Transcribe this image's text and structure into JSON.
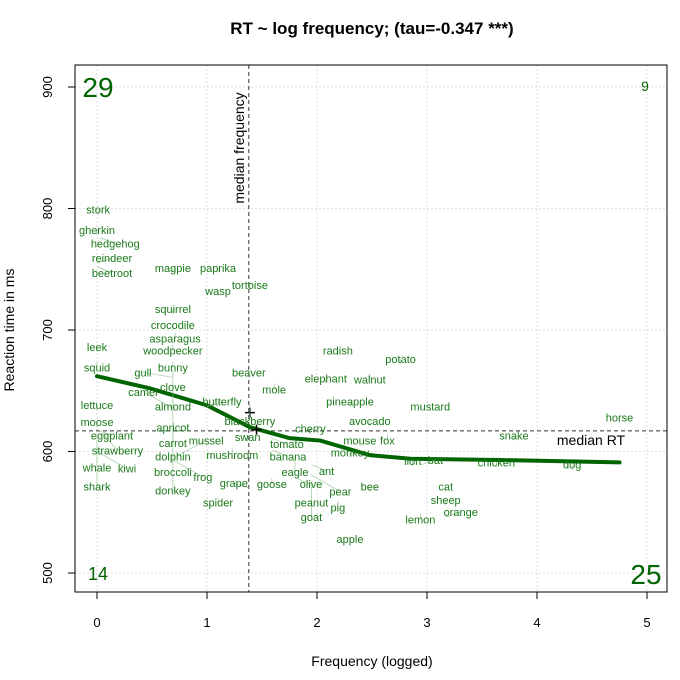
{
  "chart_data": {
    "type": "scatter",
    "title": "RT ~ log frequency; (tau=-0.347 ***)",
    "xlabel": "Frequency (logged)",
    "ylabel": "Reaction time in ms",
    "xlim": [
      -0.2,
      5.2
    ],
    "ylim": [
      482,
      920
    ],
    "xticks": [
      "0",
      "1",
      "2",
      "3",
      "4",
      "5"
    ],
    "yticks": [
      "500",
      "600",
      "700",
      "800",
      "900"
    ],
    "grid": true,
    "point_color": "#006400",
    "median_frequency": {
      "value": 1.38,
      "label": "median frequency"
    },
    "median_rt": {
      "value": 617,
      "label": "median RT"
    },
    "quadrant_counts": {
      "top_left": "29",
      "top_right": "9",
      "bottom_left": "14",
      "bottom_right": "25"
    },
    "points": [
      {
        "label": "stork",
        "x": 0.01,
        "y": 795
      },
      {
        "label": "gherkin",
        "x": 0,
        "y": 778
      },
      {
        "label": "hedgehog",
        "x": 0.03,
        "y": 776
      },
      {
        "label": "reindeer",
        "x": 0,
        "y": 755
      },
      {
        "label": "beetroot",
        "x": 0,
        "y": 752
      },
      {
        "label": "magpie",
        "x": 0.69,
        "y": 747
      },
      {
        "label": "paprika",
        "x": 1.1,
        "y": 747
      },
      {
        "label": "wasp",
        "x": 1.1,
        "y": 728
      },
      {
        "label": "tortoise",
        "x": 1.39,
        "y": 733
      },
      {
        "label": "squirrel",
        "x": 0.69,
        "y": 713
      },
      {
        "label": "crocodile",
        "x": 0.69,
        "y": 700
      },
      {
        "label": "asparagus",
        "x": 0.71,
        "y": 698
      },
      {
        "label": "woodpecker",
        "x": 0.69,
        "y": 688
      },
      {
        "label": "leek",
        "x": 0,
        "y": 682
      },
      {
        "label": "squid",
        "x": 0,
        "y": 674
      },
      {
        "label": "bunny",
        "x": 0.69,
        "y": 674
      },
      {
        "label": "clove",
        "x": 0.69,
        "y": 667
      },
      {
        "label": "gull",
        "x": 0.69,
        "y": 661
      },
      {
        "label": "almond",
        "x": 0.69,
        "y": 651
      },
      {
        "label": "apricot",
        "x": 0.69,
        "y": 643
      },
      {
        "label": "beaver",
        "x": 1.38,
        "y": 661
      },
      {
        "label": "mole",
        "x": 1.61,
        "y": 656
      },
      {
        "label": "elephant",
        "x": 2.08,
        "y": 656
      },
      {
        "label": "radish",
        "x": 2.19,
        "y": 679
      },
      {
        "label": "potato",
        "x": 2.76,
        "y": 672
      },
      {
        "label": "walnut",
        "x": 2.48,
        "y": 664
      },
      {
        "label": "butterfly",
        "x": 1.0,
        "y": 637
      },
      {
        "label": "blackberry",
        "x": 1.39,
        "y": 639
      },
      {
        "label": "camel",
        "x": 0.69,
        "y": 636
      },
      {
        "label": "lettuce",
        "x": 0,
        "y": 634
      },
      {
        "label": "pineapple",
        "x": 2.3,
        "y": 637
      },
      {
        "label": "mustard",
        "x": 3.03,
        "y": 633
      },
      {
        "label": "horse",
        "x": 4.75,
        "y": 624
      },
      {
        "label": "carrot",
        "x": 0.69,
        "y": 621
      },
      {
        "label": "dolphin",
        "x": 0.69,
        "y": 619
      },
      {
        "label": "avocado",
        "x": 2.48,
        "y": 621
      },
      {
        "label": "fox",
        "x": 2.64,
        "y": 614
      },
      {
        "label": "moose",
        "x": 0,
        "y": 620
      },
      {
        "label": "eggplant",
        "x": 0,
        "y": 618
      },
      {
        "label": "strawberry",
        "x": 0.05,
        "y": 615
      },
      {
        "label": "cherry",
        "x": 1.94,
        "y": 615
      },
      {
        "label": "whale",
        "x": 0,
        "y": 610
      },
      {
        "label": "swan",
        "x": 1.37,
        "y": 608
      },
      {
        "label": "tomato",
        "x": 1.59,
        "y": 611
      },
      {
        "label": "snake",
        "x": 3.79,
        "y": 609
      },
      {
        "label": "mushroom",
        "x": 1.23,
        "y": 602
      },
      {
        "label": "banana",
        "x": 1.6,
        "y": 601
      },
      {
        "label": "mouse",
        "x": 2.39,
        "y": 605
      },
      {
        "label": "kiwi",
        "x": 0,
        "y": 600
      },
      {
        "label": "broccoli",
        "x": 0.69,
        "y": 597
      },
      {
        "label": "mussel",
        "x": 0.72,
        "y": 596
      },
      {
        "label": "frog",
        "x": 0.69,
        "y": 593
      },
      {
        "label": "eagle",
        "x": 1.8,
        "y": 597
      },
      {
        "label": "monkey",
        "x": 2.3,
        "y": 595
      },
      {
        "label": "ant",
        "x": 1.95,
        "y": 589
      },
      {
        "label": "lion",
        "x": 2.87,
        "y": 588
      },
      {
        "label": "bat",
        "x": 2.94,
        "y": 589
      },
      {
        "label": "chicken",
        "x": 3.63,
        "y": 587
      },
      {
        "label": "dog",
        "x": 4.32,
        "y": 585
      },
      {
        "label": "shark",
        "x": 0,
        "y": 585
      },
      {
        "label": "donkey",
        "x": 0.69,
        "y": 582
      },
      {
        "label": "goose",
        "x": 1.59,
        "y": 578
      },
      {
        "label": "olive",
        "x": 1.81,
        "y": 578
      },
      {
        "label": "pear",
        "x": 1.94,
        "y": 581
      },
      {
        "label": "peanut",
        "x": 1.95,
        "y": 572
      },
      {
        "label": "cat",
        "x": 3.17,
        "y": 567
      },
      {
        "label": "grape",
        "x": 1.38,
        "y": 570
      },
      {
        "label": "bee",
        "x": 2.48,
        "y": 567
      },
      {
        "label": "spider",
        "x": 1.1,
        "y": 563
      },
      {
        "label": "goat",
        "x": 1.95,
        "y": 560
      },
      {
        "label": "pig",
        "x": 2.19,
        "y": 559
      },
      {
        "label": "sheep",
        "x": 3.17,
        "y": 556
      },
      {
        "label": "lemon",
        "x": 2.94,
        "y": 549
      },
      {
        "label": "orange",
        "x": 3.17,
        "y": 546
      },
      {
        "label": "apple",
        "x": 2.3,
        "y": 524
      }
    ],
    "smooth_line": [
      [
        0,
        662
      ],
      [
        0.48,
        652
      ],
      [
        1,
        638
      ],
      [
        1.39,
        620
      ],
      [
        1.75,
        611
      ],
      [
        2.03,
        609
      ],
      [
        2.48,
        597
      ],
      [
        2.85,
        594
      ],
      [
        3.66,
        593
      ],
      [
        4.75,
        591
      ]
    ],
    "plus_markers": [
      [
        1.39,
        632
      ],
      [
        1.45,
        618
      ]
    ]
  }
}
